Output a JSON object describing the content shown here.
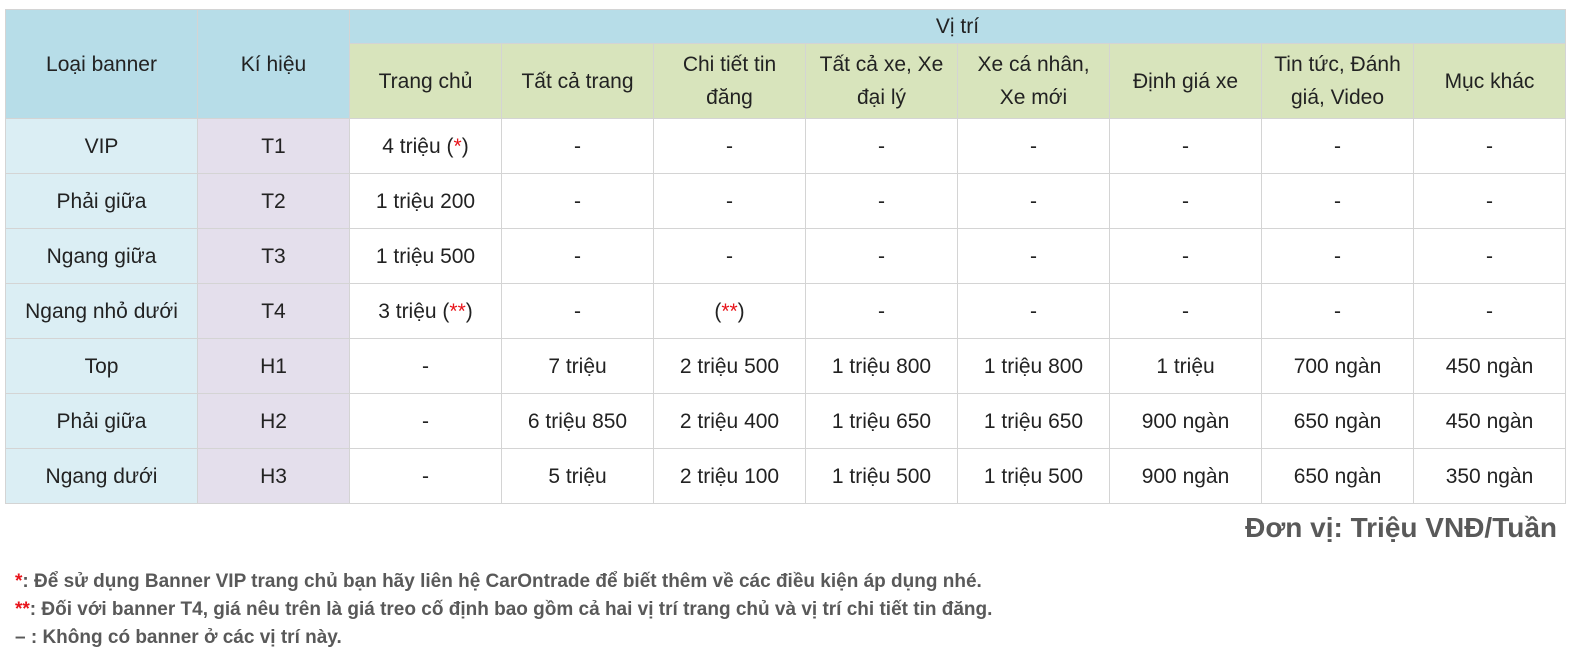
{
  "headers": {
    "banner_type": "Loại banner",
    "code": "Kí hiệu",
    "position": "Vị trí",
    "positions": [
      "Trang chủ",
      "Tất cả trang",
      "Chi tiết tin đăng",
      "Tất cả xe, Xe đại lý",
      "Xe cá nhân, Xe mới",
      "Định giá xe",
      "Tin tức, Đánh giá, Video",
      "Mục khác"
    ]
  },
  "rows": [
    {
      "type": "VIP",
      "code": "T1",
      "values": [
        "4 triệu (",
        "-",
        "-",
        "-",
        "-",
        "-",
        "-",
        "-"
      ],
      "home_note": "*"
    },
    {
      "type": "Phải giữa",
      "code": "T2",
      "values": [
        "1 triệu 200",
        "-",
        "-",
        "-",
        "-",
        "-",
        "-",
        "-"
      ]
    },
    {
      "type": "Ngang giữa",
      "code": "T3",
      "values": [
        "1 triệu 500",
        "-",
        "-",
        "-",
        "-",
        "-",
        "-",
        "-"
      ]
    },
    {
      "type": "Ngang nhỏ dưới",
      "code": "T4",
      "values": [
        "3 triệu (",
        "-",
        "(",
        "-",
        "-",
        "-",
        "-",
        "-"
      ],
      "home_note": "**",
      "detail_note": "**"
    },
    {
      "type": "Top",
      "code": "H1",
      "values": [
        "-",
        "7 triệu",
        "2 triệu 500",
        "1 triệu 800",
        "1 triệu 800",
        "1 triệu",
        "700 ngàn",
        "450 ngàn"
      ]
    },
    {
      "type": "Phải giữa",
      "code": "H2",
      "values": [
        "-",
        "6 triệu 850",
        "2 triệu 400",
        "1 triệu 650",
        "1 triệu 650",
        "900 ngàn",
        "650 ngàn",
        "450 ngàn"
      ]
    },
    {
      "type": "Ngang dưới",
      "code": "H3",
      "values": [
        "-",
        "5 triệu",
        "2 triệu 100",
        "1 triệu 500",
        "1 triệu 500",
        "900 ngàn",
        "650 ngàn",
        "350 ngàn"
      ]
    }
  ],
  "unit": "Đơn vị: Triệu VNĐ/Tuần",
  "notes": [
    {
      "mark": "*",
      "text": ": Để sử dụng Banner VIP trang chủ bạn hãy liên hệ CarOntrade để biết thêm về các điều kiện áp dụng nhé."
    },
    {
      "mark": "**",
      "text": ": Đối với banner T4, giá nêu trên là giá treo cố định bao gồm cả hai vị trí trang chủ và vị trí chi tiết tin đăng."
    },
    {
      "mark": "",
      "text": " – : Không có banner ở các vị trí này."
    }
  ],
  "colors": {
    "header_blue": "#b7dde8",
    "header_green": "#d8e4bc",
    "type_col": "#dbeef4",
    "code_col": "#e4dfec",
    "accent_red": "#e8141b",
    "note_gray": "#595959"
  }
}
